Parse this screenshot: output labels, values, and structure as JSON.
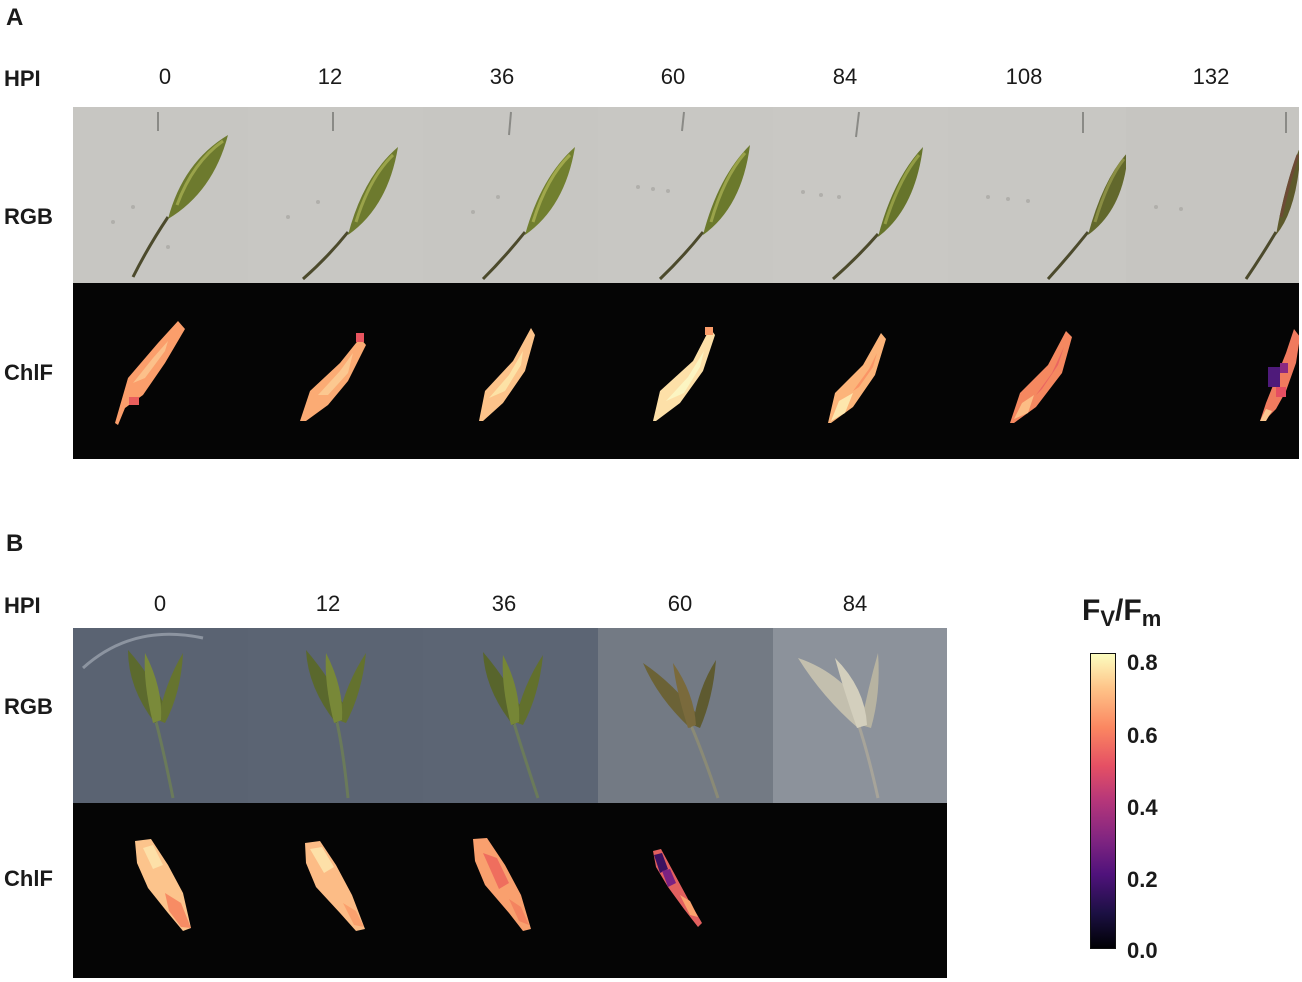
{
  "panel_a": {
    "letter": "A",
    "hpi_label": "HPI",
    "hpi": [
      "0",
      "12",
      "36",
      "60",
      "84",
      "108",
      "132"
    ],
    "rgb_label": "RGB",
    "chlf_label": "ChlF"
  },
  "panel_b": {
    "letter": "B",
    "hpi_label": "HPI",
    "hpi": [
      "0",
      "12",
      "36",
      "60",
      "84"
    ],
    "rgb_label": "RGB",
    "chlf_label": "ChlF"
  },
  "colorbar": {
    "title_main": "F",
    "title_sub1": "V",
    "title_sep": "/F",
    "title_sub2": "m",
    "ticks": [
      "0.8",
      "0.6",
      "0.4",
      "0.2",
      "0.0"
    ],
    "colormap": "magma"
  }
}
